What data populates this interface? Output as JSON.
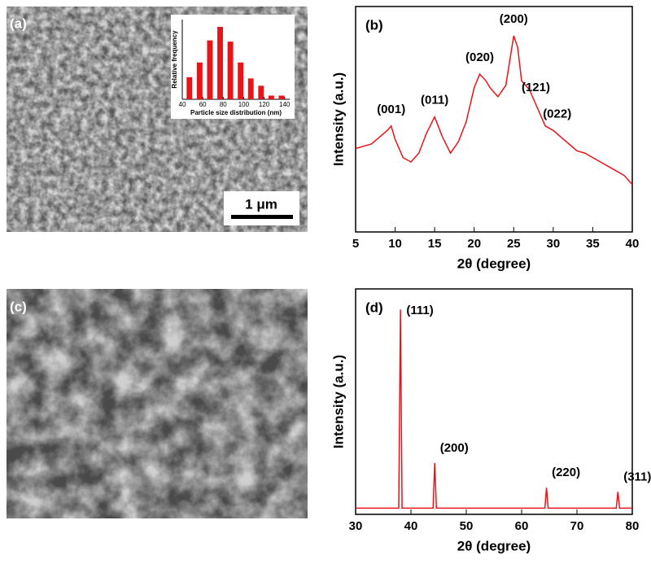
{
  "images": [
    {
      "label": "(a)",
      "scale_bar": "1 μm"
    },
    {
      "label": "(c)"
    }
  ],
  "chart_data": [
    {
      "type": "histogram",
      "ylabel": "Relative frequency",
      "xlabel": "Particle size distribution (nm)",
      "bins": [
        42,
        52,
        62,
        72,
        82,
        92,
        102,
        112,
        122,
        132,
        142
      ],
      "values": [
        18,
        30,
        48,
        59,
        47,
        30,
        17,
        11,
        3,
        3
      ],
      "color": "#e8141a",
      "xlim": [
        40,
        145
      ],
      "xticks": [
        40,
        60,
        80,
        100,
        120,
        140
      ],
      "ylim": [
        0,
        65
      ]
    },
    {
      "type": "line",
      "title": "(b)",
      "xlabel": "2θ (degree)",
      "ylabel": "Intensity (a.u.)",
      "color": "#e8141a",
      "x": [
        5,
        6,
        7,
        8,
        9,
        9.5,
        10,
        11,
        12,
        13,
        14,
        15,
        16,
        17,
        18,
        19,
        20,
        20.7,
        21.5,
        22,
        23,
        24,
        25,
        25.5,
        26,
        26.5,
        27,
        28,
        29,
        30,
        31,
        32,
        33,
        34,
        35,
        36,
        37,
        38,
        39,
        40
      ],
      "values": [
        37,
        38,
        39,
        42,
        45,
        47,
        41,
        33,
        31,
        35,
        44,
        51,
        42,
        35,
        40,
        49,
        64,
        70,
        67,
        64,
        60,
        65,
        87,
        82,
        67,
        65,
        63,
        55,
        47,
        45,
        42,
        39,
        36,
        35,
        33,
        31,
        29,
        27,
        25,
        21
      ],
      "xlim": [
        5,
        40
      ],
      "xticks": [
        5,
        10,
        15,
        20,
        25,
        30,
        35,
        40
      ],
      "ylim": [
        0,
        100
      ],
      "annotations": [
        {
          "text": "(001)",
          "x": 9.5
        },
        {
          "text": "(011)",
          "x": 15
        },
        {
          "text": "(020)",
          "x": 20.7
        },
        {
          "text": "(200)",
          "x": 25
        },
        {
          "text": "(121)",
          "x": 27.8
        },
        {
          "text": "(022)",
          "x": 30.5
        }
      ]
    },
    {
      "type": "line",
      "title": "(d)",
      "xlabel": "2θ (degree)",
      "ylabel": "Intensity (a.u.)",
      "color": "#e8141a",
      "x": [
        30,
        37.8,
        38.1,
        38.4,
        44.0,
        44.3,
        44.6,
        64.2,
        64.5,
        64.8,
        77.1,
        77.4,
        77.7,
        80
      ],
      "values": [
        3,
        3,
        100,
        3,
        3,
        25,
        3,
        3,
        13,
        3,
        3,
        11,
        3,
        3
      ],
      "xlim": [
        30,
        80
      ],
      "xticks": [
        30,
        40,
        50,
        60,
        70,
        80
      ],
      "ylim": [
        0,
        110
      ],
      "annotations": [
        {
          "text": "(111)",
          "x": 38.1
        },
        {
          "text": "(200)",
          "x": 44.3
        },
        {
          "text": "(220)",
          "x": 64.5
        },
        {
          "text": "(311)",
          "x": 77.4
        }
      ]
    }
  ]
}
